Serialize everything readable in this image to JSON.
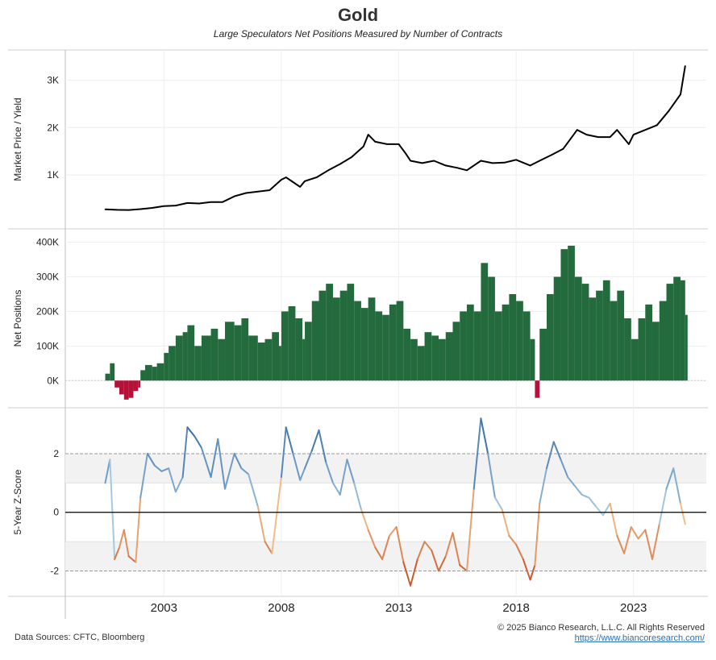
{
  "title": "Gold",
  "subtitle": "Large Speculators Net Positions Measured by Number of Contracts",
  "footer": {
    "sources": "Data Sources: CFTC, Bloomberg",
    "copyright": "© 2025 Bianco Research, L.L.C. All Rights Reserved",
    "url": "https://www.biancoresearch.com/"
  },
  "colors": {
    "price_line": "#000000",
    "net_positive": "#236b3c",
    "net_negative": "#b5123a",
    "z_positive_high": "#2f67a3",
    "z_positive_low": "#a9cbe3",
    "z_negative_low": "#f3c08a",
    "z_negative_high": "#c0461b",
    "band": "#f2f2f2"
  },
  "chart_data": [
    {
      "type": "line",
      "panel": "price",
      "ylabel": "Market Price / Yield",
      "ylim": [
        0,
        3500
      ],
      "yticks": [
        1000,
        2000,
        3000
      ],
      "ytick_labels": [
        "1K",
        "2K",
        "3K"
      ],
      "series": [
        {
          "x": [
            2000.5,
            2001.0,
            2001.5,
            2002.0,
            2002.5,
            2003.0,
            2003.5,
            2004.0,
            2004.5,
            2005.0,
            2005.5,
            2006.0,
            2006.5,
            2007.0,
            2007.5,
            2008.0,
            2008.2,
            2008.5,
            2008.8,
            2009.0,
            2009.5,
            2010.0,
            2010.5,
            2011.0,
            2011.5,
            2011.7,
            2012.0,
            2012.5,
            2013.0,
            2013.3,
            2013.5,
            2014.0,
            2014.5,
            2015.0,
            2015.5,
            2015.9,
            2016.5,
            2017.0,
            2017.5,
            2018.0,
            2018.6,
            2019.0,
            2019.5,
            2020.0,
            2020.6,
            2021.0,
            2021.5,
            2022.0,
            2022.3,
            2022.8,
            2023.0,
            2023.5,
            2024.0,
            2024.5,
            2025.0,
            2025.2
          ],
          "values": [
            275,
            265,
            262,
            280,
            305,
            345,
            355,
            410,
            400,
            430,
            430,
            550,
            620,
            650,
            680,
            900,
            950,
            850,
            750,
            870,
            950,
            1100,
            1230,
            1380,
            1600,
            1850,
            1700,
            1650,
            1650,
            1450,
            1300,
            1250,
            1300,
            1200,
            1150,
            1100,
            1300,
            1250,
            1260,
            1320,
            1200,
            1300,
            1420,
            1550,
            1950,
            1850,
            1800,
            1800,
            1950,
            1650,
            1850,
            1950,
            2050,
            2350,
            2700,
            3300
          ]
        }
      ]
    },
    {
      "type": "bar",
      "panel": "net_positions",
      "ylabel": "Net Positions",
      "ylim": [
        -60000,
        420000
      ],
      "yticks": [
        0,
        100000,
        200000,
        300000,
        400000
      ],
      "ytick_labels": [
        "0K",
        "100K",
        "200K",
        "300K",
        "400K"
      ],
      "series": [
        {
          "x": [
            2000.5,
            2000.7,
            2000.9,
            2001.1,
            2001.3,
            2001.5,
            2001.7,
            2001.9,
            2002.0,
            2002.2,
            2002.5,
            2002.7,
            2003.0,
            2003.2,
            2003.5,
            2003.8,
            2004.0,
            2004.3,
            2004.6,
            2005.0,
            2005.3,
            2005.6,
            2006.0,
            2006.3,
            2006.6,
            2007.0,
            2007.3,
            2007.6,
            2007.9,
            2008.0,
            2008.3,
            2008.6,
            2008.9,
            2009.0,
            2009.3,
            2009.6,
            2009.9,
            2010.2,
            2010.5,
            2010.8,
            2011.1,
            2011.4,
            2011.7,
            2012.0,
            2012.3,
            2012.6,
            2012.9,
            2013.2,
            2013.5,
            2013.8,
            2014.1,
            2014.4,
            2014.7,
            2015.0,
            2015.3,
            2015.6,
            2015.9,
            2016.2,
            2016.5,
            2016.8,
            2017.1,
            2017.4,
            2017.7,
            2018.0,
            2018.3,
            2018.6,
            2018.8,
            2019.0,
            2019.3,
            2019.6,
            2019.9,
            2020.2,
            2020.5,
            2020.8,
            2021.1,
            2021.4,
            2021.7,
            2022.0,
            2022.3,
            2022.6,
            2022.9,
            2023.2,
            2023.5,
            2023.8,
            2024.1,
            2024.4,
            2024.7,
            2025.0,
            2025.2
          ],
          "values": [
            20000,
            50000,
            -20000,
            -40000,
            -55000,
            -50000,
            -30000,
            -20000,
            30000,
            45000,
            40000,
            50000,
            80000,
            100000,
            130000,
            140000,
            160000,
            100000,
            130000,
            150000,
            120000,
            170000,
            160000,
            180000,
            130000,
            110000,
            120000,
            140000,
            100000,
            200000,
            215000,
            180000,
            120000,
            170000,
            230000,
            260000,
            280000,
            240000,
            260000,
            280000,
            230000,
            210000,
            240000,
            200000,
            190000,
            220000,
            230000,
            150000,
            120000,
            100000,
            140000,
            130000,
            120000,
            140000,
            170000,
            200000,
            220000,
            200000,
            340000,
            300000,
            200000,
            220000,
            250000,
            230000,
            200000,
            120000,
            -50000,
            150000,
            250000,
            300000,
            380000,
            390000,
            300000,
            280000,
            240000,
            260000,
            290000,
            230000,
            260000,
            180000,
            120000,
            180000,
            220000,
            170000,
            230000,
            280000,
            300000,
            290000,
            190000
          ]
        }
      ]
    },
    {
      "type": "line",
      "panel": "zscore",
      "ylabel": "5-Year Z-Score",
      "ylim": [
        -2.7,
        3.4
      ],
      "yticks": [
        -2,
        0,
        2
      ],
      "ytick_labels": [
        "-2",
        "0",
        "2"
      ],
      "series": [
        {
          "x": [
            2000.5,
            2000.7,
            2000.9,
            2001.1,
            2001.3,
            2001.5,
            2001.8,
            2002.0,
            2002.3,
            2002.6,
            2002.9,
            2003.2,
            2003.5,
            2003.8,
            2004.0,
            2004.3,
            2004.6,
            2005.0,
            2005.3,
            2005.6,
            2006.0,
            2006.3,
            2006.6,
            2007.0,
            2007.3,
            2007.6,
            2008.0,
            2008.2,
            2008.5,
            2008.8,
            2009.0,
            2009.3,
            2009.6,
            2009.9,
            2010.2,
            2010.5,
            2010.8,
            2011.1,
            2011.4,
            2011.7,
            2012.0,
            2012.3,
            2012.6,
            2012.9,
            2013.2,
            2013.5,
            2013.8,
            2014.1,
            2014.4,
            2014.7,
            2015.0,
            2015.3,
            2015.6,
            2015.9,
            2016.2,
            2016.5,
            2016.8,
            2017.1,
            2017.4,
            2017.7,
            2018.0,
            2018.3,
            2018.6,
            2018.8,
            2019.0,
            2019.3,
            2019.6,
            2019.9,
            2020.2,
            2020.5,
            2020.8,
            2021.1,
            2021.4,
            2021.7,
            2022.0,
            2022.3,
            2022.6,
            2022.9,
            2023.2,
            2023.5,
            2023.8,
            2024.1,
            2024.4,
            2024.7,
            2025.0,
            2025.2
          ],
          "values": [
            1.0,
            1.8,
            -1.6,
            -1.2,
            -0.6,
            -1.5,
            -1.7,
            0.5,
            2.0,
            1.6,
            1.4,
            1.5,
            0.7,
            1.2,
            2.9,
            2.6,
            2.2,
            1.2,
            2.5,
            0.8,
            2.0,
            1.5,
            1.3,
            0.2,
            -1.0,
            -1.4,
            1.2,
            2.9,
            2.0,
            1.1,
            1.5,
            2.1,
            2.8,
            1.7,
            1.0,
            0.6,
            1.8,
            1.0,
            0.1,
            -0.6,
            -1.2,
            -1.6,
            -0.8,
            -0.5,
            -1.7,
            -2.5,
            -1.6,
            -1.0,
            -1.3,
            -2.0,
            -1.5,
            -0.7,
            -1.8,
            -2.0,
            0.8,
            3.2,
            2.0,
            0.5,
            0.1,
            -0.8,
            -1.1,
            -1.6,
            -2.3,
            -1.8,
            0.3,
            1.5,
            2.4,
            1.8,
            1.2,
            0.9,
            0.6,
            0.5,
            0.2,
            -0.1,
            0.3,
            -0.8,
            -1.4,
            -0.5,
            -0.9,
            -0.6,
            -1.6,
            -0.4,
            0.8,
            1.5,
            0.3,
            -0.4
          ]
        }
      ]
    }
  ],
  "x_axis": {
    "xlim": [
      1998.8,
      2026.1
    ],
    "ticks": [
      2003,
      2008,
      2013,
      2018,
      2023
    ],
    "tick_labels": [
      "2003",
      "2008",
      "2013",
      "2018",
      "2023"
    ],
    "grid": true
  }
}
